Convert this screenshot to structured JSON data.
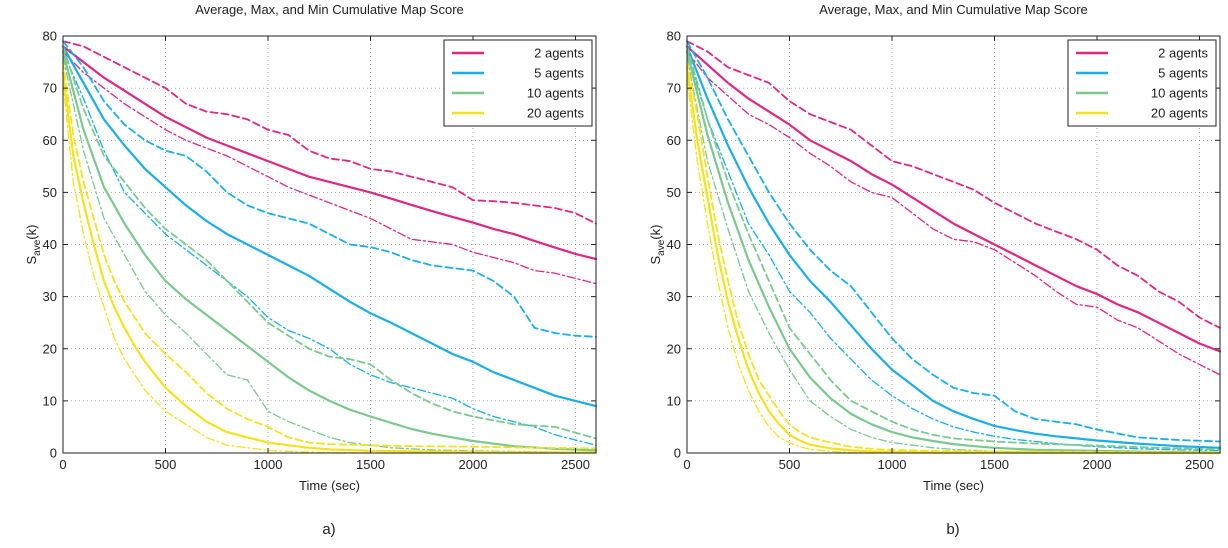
{
  "figure": {
    "panels": [
      {
        "caption": "a)"
      },
      {
        "caption": "b)"
      }
    ]
  },
  "chart_data": [
    {
      "type": "line",
      "title": "Average, Max, and Min Cumulative Map Score",
      "xlabel": "Time (sec)",
      "ylabel": "S_ave(k)",
      "ylabel_main": "S",
      "ylabel_sub": "ave",
      "ylabel_tail": "(k)",
      "xlim": [
        0,
        2600
      ],
      "ylim": [
        0,
        80
      ],
      "xticks": [
        0,
        500,
        1000,
        1500,
        2000,
        2500
      ],
      "yticks": [
        0,
        10,
        20,
        30,
        40,
        50,
        60,
        70,
        80
      ],
      "grid": true,
      "legend_position": "top-right",
      "legend": [
        "2 agents",
        "5 agents",
        "10 agents",
        "20 agents"
      ],
      "caption": "a)",
      "series": [
        {
          "name": "2 agents",
          "color": "#E0267F",
          "x": [
            0,
            100,
            200,
            300,
            400,
            500,
            600,
            700,
            800,
            900,
            1000,
            1100,
            1200,
            1300,
            1400,
            1500,
            1600,
            1700,
            1800,
            1900,
            2000,
            2100,
            2200,
            2300,
            2400,
            2500,
            2600
          ],
          "ave": [
            78,
            75,
            72,
            69.5,
            67,
            64.5,
            62.5,
            60.5,
            59,
            57.5,
            56,
            54.5,
            53,
            52,
            51,
            50,
            48.8,
            47.6,
            46.4,
            45.3,
            44.2,
            43,
            42,
            40.7,
            39.4,
            38.2,
            37.2
          ],
          "max": [
            79,
            78,
            76,
            74,
            72,
            70,
            67,
            65.5,
            65,
            64,
            62,
            61,
            58,
            56.5,
            56,
            54.5,
            54,
            53,
            52,
            51,
            48.5,
            48.3,
            48,
            47.5,
            47,
            46,
            44
          ],
          "min": [
            77,
            73,
            70,
            67,
            64.5,
            62,
            60,
            58.5,
            57,
            55,
            53,
            51,
            49.5,
            48,
            46.5,
            45,
            43,
            41,
            40.5,
            40,
            38.5,
            37.5,
            36.5,
            35,
            34.5,
            33.5,
            32.5
          ]
        },
        {
          "name": "5 agents",
          "color": "#1AAEE6",
          "x": [
            0,
            100,
            200,
            300,
            400,
            500,
            600,
            700,
            800,
            900,
            1000,
            1100,
            1200,
            1300,
            1400,
            1500,
            1600,
            1700,
            1800,
            1900,
            2000,
            2100,
            2200,
            2300,
            2400,
            2500,
            2600
          ],
          "ave": [
            78,
            71,
            64,
            59,
            54.5,
            51,
            47.5,
            44.5,
            42,
            40,
            38,
            36,
            34,
            31.5,
            29,
            26.8,
            25,
            23,
            21,
            19,
            17.5,
            15.5,
            14,
            12.5,
            11,
            10,
            9
          ],
          "max": [
            79,
            74,
            67.5,
            63,
            60,
            58,
            57,
            54,
            50,
            47.5,
            46,
            45,
            44,
            42,
            40,
            39.5,
            38.5,
            37,
            36,
            35.5,
            35,
            33,
            30,
            24,
            23,
            22.5,
            22.3
          ],
          "min": [
            77,
            68,
            58,
            50,
            46,
            42,
            39,
            36,
            33,
            30,
            26,
            23.5,
            22,
            20,
            17,
            15,
            13.5,
            12.5,
            11.5,
            10.5,
            8.5,
            7,
            6,
            5,
            3.5,
            2.5,
            1.5
          ]
        },
        {
          "name": "10 agents",
          "color": "#7CC88E",
          "x": [
            0,
            100,
            200,
            300,
            400,
            500,
            600,
            700,
            800,
            900,
            1000,
            1100,
            1200,
            1300,
            1400,
            1500,
            1600,
            1700,
            1800,
            1900,
            2000,
            2200,
            2400,
            2600
          ],
          "ave": [
            77,
            62,
            51,
            44,
            38,
            33,
            29.5,
            26.5,
            23.5,
            20.5,
            17.5,
            14.5,
            12,
            10,
            8.3,
            7,
            5.8,
            4.6,
            3.7,
            3,
            2.3,
            1.3,
            0.8,
            0.5
          ],
          "max": [
            78,
            66,
            57,
            52,
            47,
            43,
            40,
            37,
            33,
            29,
            25,
            22.5,
            20,
            18.5,
            18,
            17,
            14,
            11.5,
            9.5,
            8,
            7,
            5.5,
            5,
            2.8
          ],
          "min": [
            76,
            58,
            45,
            38,
            31,
            26.5,
            23,
            19,
            15,
            14,
            8,
            6,
            4.5,
            3,
            2,
            1.5,
            1,
            0.8,
            0.6,
            0.5,
            0.4,
            0.3,
            0.2,
            0.1
          ]
        },
        {
          "name": "20 agents",
          "color": "#F4E21E",
          "x": [
            0,
            50,
            100,
            150,
            200,
            250,
            300,
            350,
            400,
            450,
            500,
            600,
            700,
            800,
            900,
            1000,
            1100,
            1200,
            1300,
            1500,
            1700,
            2000,
            2300,
            2600
          ],
          "ave": [
            73,
            57,
            48,
            40,
            33,
            28,
            24,
            20.5,
            17.5,
            15,
            12.5,
            9,
            6,
            4,
            3,
            2,
            1.5,
            1,
            0.7,
            0.4,
            0.3,
            0.2,
            0.1,
            0.1
          ],
          "max": [
            75,
            61,
            52,
            45,
            38,
            33,
            29,
            26,
            23,
            21,
            19,
            15.5,
            11.5,
            8.5,
            6.5,
            5,
            3,
            2,
            1.7,
            1.5,
            1.3,
            1.2,
            1,
            0.9
          ],
          "min": [
            71,
            52,
            42,
            34,
            28,
            22,
            18,
            15,
            12,
            10,
            8,
            5.5,
            3,
            1.5,
            1,
            0.5,
            0.3,
            0.2,
            0.1,
            0,
            0,
            0,
            0,
            0
          ]
        }
      ]
    },
    {
      "type": "line",
      "title": "Average, Max, and Min Cumulative Map Score",
      "xlabel": "Time (sec)",
      "ylabel": "S_ave(k)",
      "ylabel_main": "S",
      "ylabel_sub": "ave",
      "ylabel_tail": "(k)",
      "xlim": [
        0,
        2600
      ],
      "ylim": [
        0,
        80
      ],
      "xticks": [
        0,
        500,
        1000,
        1500,
        2000,
        2500
      ],
      "yticks": [
        0,
        10,
        20,
        30,
        40,
        50,
        60,
        70,
        80
      ],
      "grid": true,
      "legend_position": "top-right",
      "legend": [
        "2 agents",
        "5 agents",
        "10 agents",
        "20 agents"
      ],
      "caption": "b)",
      "series": [
        {
          "name": "2 agents",
          "color": "#E0267F",
          "x": [
            0,
            100,
            200,
            300,
            400,
            500,
            600,
            700,
            800,
            900,
            1000,
            1100,
            1200,
            1300,
            1400,
            1500,
            1600,
            1700,
            1800,
            1900,
            2000,
            2100,
            2200,
            2300,
            2400,
            2500,
            2600
          ],
          "ave": [
            78,
            74.5,
            71,
            68,
            65.5,
            63,
            60,
            58,
            56,
            53.5,
            51.5,
            49,
            46.5,
            44,
            42,
            40,
            38,
            36,
            34,
            32,
            30.5,
            28.5,
            27,
            25,
            23,
            21,
            19.5
          ],
          "max": [
            79,
            77,
            74,
            72.5,
            71,
            67.5,
            65,
            63.5,
            62,
            59,
            56,
            55,
            53.5,
            52,
            50.5,
            48,
            46,
            44,
            42.5,
            41,
            39,
            36,
            34,
            31,
            29,
            26,
            24
          ],
          "min": [
            77,
            72,
            68.5,
            65,
            63,
            60.5,
            57.5,
            55,
            52,
            50,
            49,
            46,
            43,
            41,
            40.5,
            39,
            36.5,
            34,
            31,
            28.5,
            28,
            25.5,
            24,
            21.5,
            19,
            17,
            15
          ]
        },
        {
          "name": "5 agents",
          "color": "#1AAEE6",
          "x": [
            0,
            100,
            200,
            300,
            400,
            500,
            600,
            700,
            800,
            900,
            1000,
            1100,
            1200,
            1300,
            1400,
            1500,
            1600,
            1700,
            1800,
            1900,
            2000,
            2200,
            2400,
            2600
          ],
          "ave": [
            78,
            68,
            59,
            51,
            44,
            38,
            33,
            29,
            24.5,
            20,
            16,
            13,
            10,
            8,
            6.5,
            5.2,
            4.4,
            3.7,
            3.2,
            2.8,
            2.4,
            1.8,
            1.3,
            1
          ],
          "max": [
            79,
            72,
            64,
            57,
            50,
            44,
            39,
            35,
            32,
            27,
            22,
            18,
            15,
            12.5,
            11.5,
            11,
            8,
            6.5,
            6,
            5.5,
            4.5,
            3,
            2.5,
            2.2
          ],
          "min": [
            77,
            64,
            54,
            44,
            38,
            31,
            27,
            22,
            18,
            14,
            11,
            8.5,
            6.5,
            5,
            4,
            3.2,
            2.6,
            2.2,
            1.8,
            1.5,
            1.2,
            0.8,
            0.6,
            0.5
          ]
        },
        {
          "name": "10 agents",
          "color": "#7CC88E",
          "x": [
            0,
            100,
            200,
            300,
            400,
            500,
            600,
            700,
            800,
            900,
            1000,
            1100,
            1200,
            1300,
            1400,
            1500,
            1700,
            2000,
            2300,
            2600
          ],
          "ave": [
            77,
            61,
            48,
            37,
            28,
            20,
            14.5,
            10.5,
            7.5,
            5.5,
            4,
            3,
            2.3,
            1.7,
            1.3,
            1,
            0.6,
            0.4,
            0.2,
            0.1
          ],
          "max": [
            78,
            64,
            52,
            42,
            33,
            24,
            19,
            14,
            10,
            8,
            6,
            4.5,
            3.5,
            2.8,
            2.5,
            2.2,
            1.8,
            1.4,
            1,
            0.7
          ],
          "min": [
            76,
            56,
            43,
            31,
            23,
            16,
            10,
            7,
            4.5,
            3,
            2,
            1.5,
            1,
            0.7,
            0.5,
            0.3,
            0.2,
            0.1,
            0,
            0
          ]
        },
        {
          "name": "20 agents",
          "color": "#F4E21E",
          "x": [
            0,
            50,
            100,
            150,
            200,
            250,
            300,
            350,
            400,
            450,
            500,
            550,
            600,
            700,
            800,
            900,
            1000,
            1200,
            1500,
            2000,
            2600
          ],
          "ave": [
            74,
            60,
            49,
            38,
            29,
            22,
            16,
            11.5,
            8,
            5.5,
            3.5,
            2.4,
            1.6,
            0.9,
            0.5,
            0.3,
            0.2,
            0.1,
            0.1,
            0.05,
            0
          ],
          "max": [
            75,
            65,
            53,
            42,
            33,
            25,
            19,
            14,
            11,
            8,
            5.5,
            4,
            3,
            2,
            1.2,
            0.8,
            0.6,
            0.4,
            0.3,
            0.2,
            0.1
          ],
          "min": [
            72,
            56,
            44,
            33,
            24,
            17,
            12,
            8,
            5,
            3,
            2,
            1.2,
            0.7,
            0.3,
            0.1,
            0,
            0,
            0,
            0,
            0,
            0
          ]
        }
      ]
    }
  ]
}
